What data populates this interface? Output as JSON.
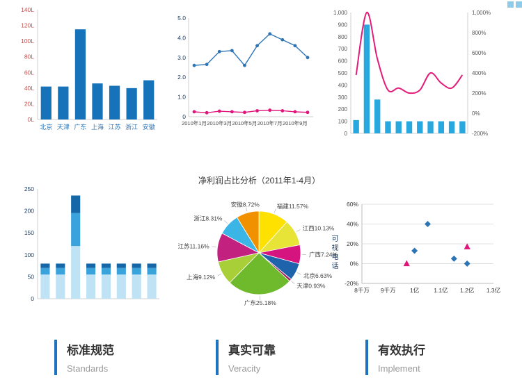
{
  "accent_color": "#1e73be",
  "chart_data": [
    {
      "id": "regional-bar",
      "type": "bar",
      "categories": [
        "北京",
        "天津",
        "广东",
        "上海",
        "江苏",
        "浙江",
        "安徽"
      ],
      "values": [
        42,
        42,
        115,
        46,
        43,
        40,
        50
      ],
      "ylim": [
        0,
        140
      ],
      "y_tick_values": [
        0,
        20,
        40,
        60,
        80,
        100,
        120,
        140
      ],
      "y_tick_labels": [
        "0L",
        "20L",
        "40L",
        "60L",
        "80L",
        "100L",
        "120L",
        "140L"
      ],
      "bar_color": "#1673b9",
      "y_label_color": "#c0504d",
      "x_label_color": "#2e75b6"
    },
    {
      "id": "monthly-lines",
      "type": "line",
      "x_count": 10,
      "x_tick_every": 2,
      "x_tick_labels": [
        "2010年1月",
        "2010年3月",
        "2010年5月",
        "2010年7月",
        "2010年9月"
      ],
      "ylim": [
        0,
        5
      ],
      "y_tick_values": [
        0,
        1,
        2,
        3,
        4,
        5
      ],
      "y_tick_labels": [
        "0",
        "1.0",
        "2.0",
        "3.0",
        "4.0",
        "5.0"
      ],
      "series": [
        {
          "name": "blue-series",
          "color": "#2e75b6",
          "values": [
            2.6,
            2.65,
            3.3,
            3.35,
            2.6,
            3.6,
            4.2,
            3.9,
            3.6,
            3.0
          ]
        },
        {
          "name": "pink-series",
          "color": "#e0157a",
          "values": [
            0.25,
            0.2,
            0.28,
            0.25,
            0.22,
            0.3,
            0.33,
            0.3,
            0.25,
            0.22
          ]
        }
      ]
    },
    {
      "id": "combo-bar-line",
      "type": "combo",
      "bar_values": [
        110,
        900,
        280,
        100,
        100,
        100,
        100,
        100,
        100,
        100,
        100
      ],
      "bar_color": "#29a8df",
      "left_ylim": [
        0,
        1000
      ],
      "left_tick_values": [
        0,
        100,
        200,
        300,
        400,
        500,
        600,
        700,
        800,
        900,
        1000
      ],
      "left_tick_labels": [
        "0",
        "100",
        "200",
        "300",
        "400",
        "500",
        "600",
        "700",
        "800",
        "900",
        "1,000"
      ],
      "line_values": [
        380,
        1000,
        540,
        230,
        250,
        200,
        230,
        400,
        300,
        250,
        380
      ],
      "line_color": "#e31c79",
      "right_ylim": [
        -200,
        1000
      ],
      "right_tick_values": [
        -200,
        0,
        200,
        400,
        600,
        800,
        1000
      ],
      "right_tick_labels": [
        "-200%",
        "0%",
        "200%",
        "400%",
        "600%",
        "800%",
        "1,000%"
      ]
    },
    {
      "id": "stacked-bar",
      "type": "stackbar",
      "bar_count": 8,
      "ylim": [
        0,
        250
      ],
      "y_tick_values": [
        0,
        50,
        100,
        150,
        200,
        250
      ],
      "y_tick_labels": [
        "0",
        "50",
        "100",
        "150",
        "200",
        "250"
      ],
      "series": [
        {
          "name": "bottom-segment",
          "color": "#bfe3f4",
          "values": [
            55,
            55,
            120,
            55,
            55,
            55,
            55,
            55
          ]
        },
        {
          "name": "middle-segment",
          "color": "#3aa3db",
          "values": [
            15,
            15,
            75,
            15,
            15,
            15,
            15,
            15
          ]
        },
        {
          "name": "top-segment",
          "color": "#1567a8",
          "values": [
            10,
            10,
            40,
            10,
            10,
            10,
            10,
            10
          ]
        }
      ]
    },
    {
      "id": "net-profit-pie",
      "type": "pie",
      "title": "净利润占比分析（2011年1-4月）",
      "slices": [
        {
          "label": "福建",
          "pct": 11.57,
          "color": "#ffe100"
        },
        {
          "label": "江西",
          "pct": 10.13,
          "color": "#e8e337"
        },
        {
          "label": "广西",
          "pct": 7.24,
          "color": "#d6147f"
        },
        {
          "label": "北京",
          "pct": 6.63,
          "color": "#1f63ad"
        },
        {
          "label": "天津",
          "pct": 0.93,
          "color": "#a21c5a"
        },
        {
          "label": "广东",
          "pct": 25.18,
          "color": "#6fba2c"
        },
        {
          "label": "上海",
          "pct": 9.12,
          "color": "#a8cf38"
        },
        {
          "label": "江苏",
          "pct": 11.16,
          "color": "#c2217f"
        },
        {
          "label": "浙江",
          "pct": 8.31,
          "color": "#3ab5e6"
        },
        {
          "label": "安徽",
          "pct": 8.72,
          "color": "#f29100"
        }
      ]
    },
    {
      "id": "scatter",
      "type": "scatter",
      "y_axis_title": "可视电话",
      "xlim": [
        0.8,
        1.3
      ],
      "x_tick_values": [
        0.8,
        0.9,
        1.0,
        1.1,
        1.2,
        1.3
      ],
      "x_tick_labels": [
        "8千万",
        "9千万",
        "1亿",
        "1.1亿",
        "1.2亿",
        "1.3亿"
      ],
      "ylim": [
        -0.2,
        0.6
      ],
      "y_tick_values": [
        -0.2,
        0,
        0.2,
        0.4,
        0.6
      ],
      "y_tick_labels": [
        "-20%",
        "0%",
        "20%",
        "40%",
        "60%"
      ],
      "series": [
        {
          "name": "diamond-series",
          "marker": "diamond",
          "color": "#2e75b6",
          "points": [
            [
              1.05,
              0.4
            ],
            [
              1.0,
              0.13
            ],
            [
              1.15,
              0.05
            ],
            [
              1.2,
              0.0
            ]
          ]
        },
        {
          "name": "triangle-series",
          "marker": "triangle",
          "color": "#e0157a",
          "points": [
            [
              0.97,
              0.0
            ],
            [
              1.2,
              0.17
            ]
          ]
        }
      ]
    }
  ],
  "features": [
    {
      "title": "标准规范",
      "subtitle": "Standards"
    },
    {
      "title": "真实可靠",
      "subtitle": "Veracity"
    },
    {
      "title": "有效执行",
      "subtitle": "Implement"
    }
  ]
}
